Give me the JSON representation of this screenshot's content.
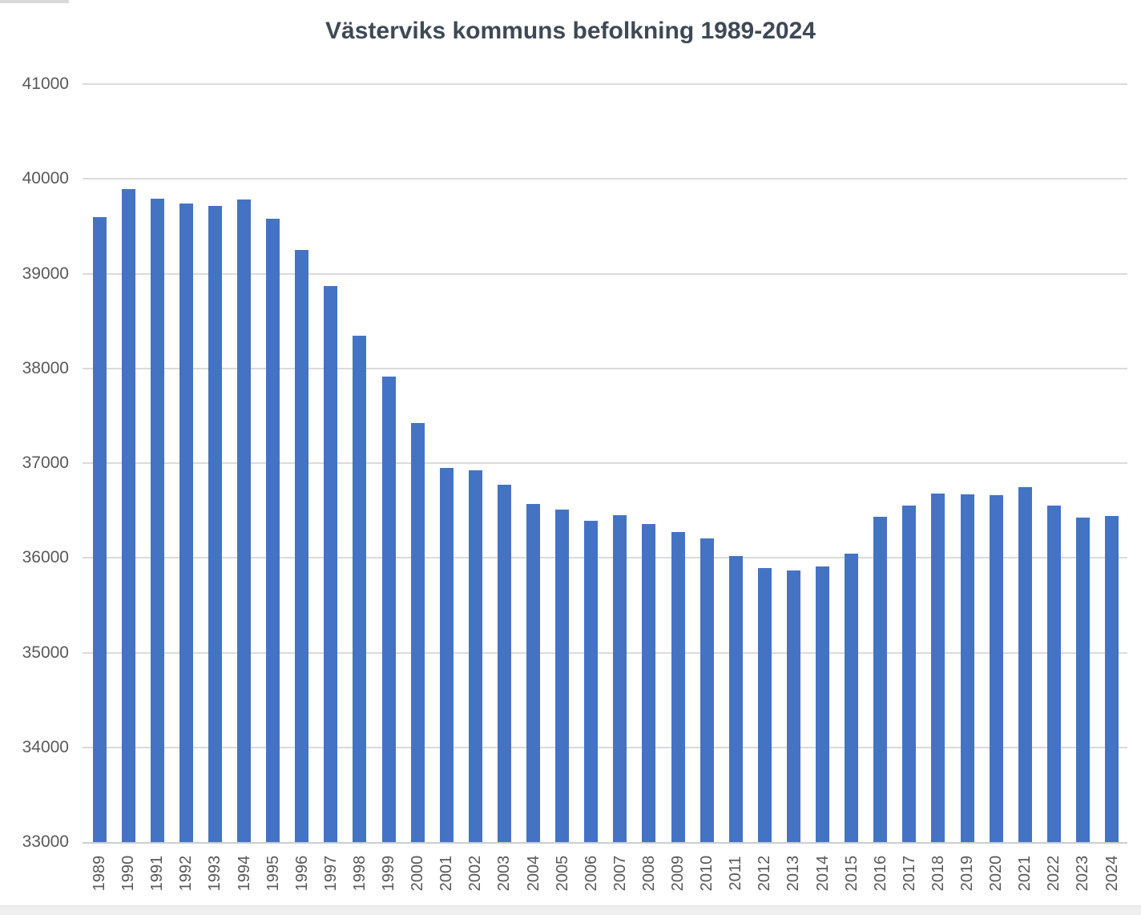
{
  "chart_data": {
    "type": "bar",
    "title": "Västerviks kommuns befolkning 1989-2024",
    "categories": [
      "1989",
      "1990",
      "1991",
      "1992",
      "1993",
      "1994",
      "1995",
      "1996",
      "1997",
      "1998",
      "1999",
      "2000",
      "2001",
      "2002",
      "2003",
      "2004",
      "2005",
      "2006",
      "2007",
      "2008",
      "2009",
      "2010",
      "2011",
      "2012",
      "2013",
      "2014",
      "2015",
      "2016",
      "2017",
      "2018",
      "2019",
      "2020",
      "2021",
      "2022",
      "2023",
      "2024"
    ],
    "values": [
      39594,
      39889,
      39787,
      39743,
      39714,
      39779,
      39583,
      39247,
      38866,
      38344,
      37917,
      37420,
      36951,
      36921,
      36768,
      36569,
      36512,
      36390,
      36452,
      36356,
      36276,
      36206,
      36022,
      35892,
      35867,
      35910,
      36046,
      36434,
      36551,
      36679,
      36674,
      36661,
      36744,
      36551,
      36422,
      36444
    ],
    "xlabel": "",
    "ylabel": "",
    "ylim": [
      33000,
      41000
    ],
    "yticks": [
      33000,
      34000,
      35000,
      36000,
      37000,
      38000,
      39000,
      40000,
      41000
    ],
    "grid": "horizontal",
    "legend_position": "none",
    "x_tick_rotation_degrees": 90
  },
  "colors": {
    "bar": "#4573C4",
    "gridline": "#DBDBDB",
    "axis_line": "#C9CED5",
    "tick_label": "#595959",
    "title": "#3E4956",
    "background": "#FFFFFF"
  }
}
